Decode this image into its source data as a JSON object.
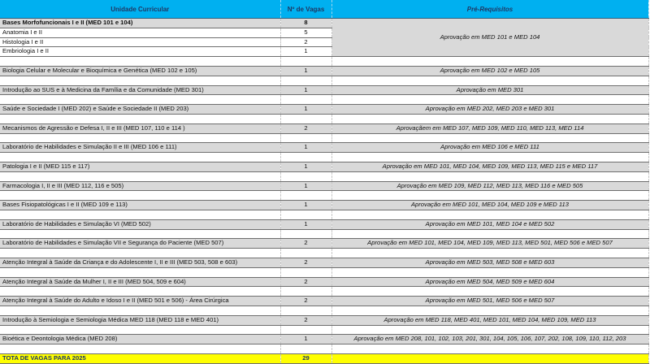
{
  "header": {
    "unidade": "Unidade Curricular",
    "vagas": "Nº de Vagas",
    "prereq": "Pré-Requisitos"
  },
  "group": {
    "name": "Bases Morfofuncionais I e II (MED 101 e 104)",
    "vagas": "8",
    "prereq": "Aprovação em MED 101 e MED 104",
    "subitems": [
      {
        "name": "Anatomia I e II",
        "vagas": "5"
      },
      {
        "name": "Histologia I e II",
        "vagas": "2"
      },
      {
        "name": "Embriologia I e II",
        "vagas": "1"
      }
    ]
  },
  "rows": [
    {
      "name": "Biologia Celular e Molecular e Bioquímica e Genética (MED 102 e 105)",
      "vagas": "1",
      "prereq": "Aprovação em MED 102 e MED 105"
    },
    {
      "name": "Introdução ao SUS e à Medicina da Família e da Comunidade (MED 301)",
      "vagas": "1",
      "prereq": "Aprovação em MED 301"
    },
    {
      "name": "Saúde e Sociedade I (MED 202) e Saúde e Sociedade II (MED 203)",
      "vagas": "1",
      "prereq": "Aprovação em MED 202, MED 203 e MED 301"
    },
    {
      "name": "Mecanismos de Agressão e Defesa I, II e III (MED 107, 110 e 114 )",
      "vagas": "2",
      "prereq": "Aprovaçãem em MED 107, MED 109, MED 110, MED 113, MED 114"
    },
    {
      "name": "Laboratório de Habilidades e Simulação II e III (MED 106 e 111)",
      "vagas": "1",
      "prereq": "Aprovação em  MED 106 e MED 111"
    },
    {
      "name": "Patologia I e II (MED 115 e 117)",
      "vagas": "1",
      "prereq": "Aprovação em MED 101, MED 104, MED 109, MED 113, MED 115 e MED 117"
    },
    {
      "name": "Farmacologia I, II e III (MED 112, 116 e 505)",
      "vagas": "1",
      "prereq": "Aprovação em MED 109, MED 112, MED 113, MED 116 e MED 505"
    },
    {
      "name": "Bases Fisiopatológicas I e II (MED 109 e 113)",
      "vagas": "1",
      "prereq": "Aprovação em MED 101, MED 104, MED 109 e MED 113"
    },
    {
      "name": "Laboratório de Habilidades e Simulação VI (MED 502)",
      "vagas": "1",
      "prereq": "Aprovação em MED 101, MED 104 e MED 502"
    },
    {
      "name": "Laboratório de Habilidades e Simulação VII e Segurança do Paciente (MED 507)",
      "vagas": "2",
      "prereq": "Aprovação em MED 101, MED 104, MED 109, MED 113, MED 501, MED 506 e MED 507"
    },
    {
      "name": "Atenção Integral à Saúde da Criança e do Adolescente I, II e III (MED 503, 508 e 603)",
      "vagas": "2",
      "prereq": "Aprovação em MED 503, MED 508 e MED 603"
    },
    {
      "name": "Atenção Integral à Saúde da Mulher I, II e III (MED 504, 509 e 604)",
      "vagas": "2",
      "prereq": "Aprovação em MED 504, MED 509 e MED 604"
    },
    {
      "name": "Atenção Integral à Saúde do Adulto e Idoso I e II (MED 501 e 506) - Área Cirúrgica",
      "vagas": "2",
      "prereq": "Aprovação em MED 501, MED 506 e MED 507"
    },
    {
      "name": "Introdução à Semiologia e Semiologia Médica MED 118 (MED 118 e MED 401)",
      "vagas": "2",
      "prereq": "Aprovação em MED 118, MED 401, MED 101, MED 104, MED 109, MED 113"
    },
    {
      "name": "Bioética e Deontologia Médica (MED 208)",
      "vagas": "1",
      "prereq": "Aprovação em MED 208, 101, 102, 103, 201, 301, 104, 105, 106, 107, 202, 108, 109, 110, 112, 203"
    }
  ],
  "total": {
    "label": "TOTA DE VAGAS PARA 2025",
    "vagas": "29"
  },
  "colors": {
    "header": "#00b0f0",
    "row_gray": "#d9d9d9",
    "total": "#ffff00"
  }
}
